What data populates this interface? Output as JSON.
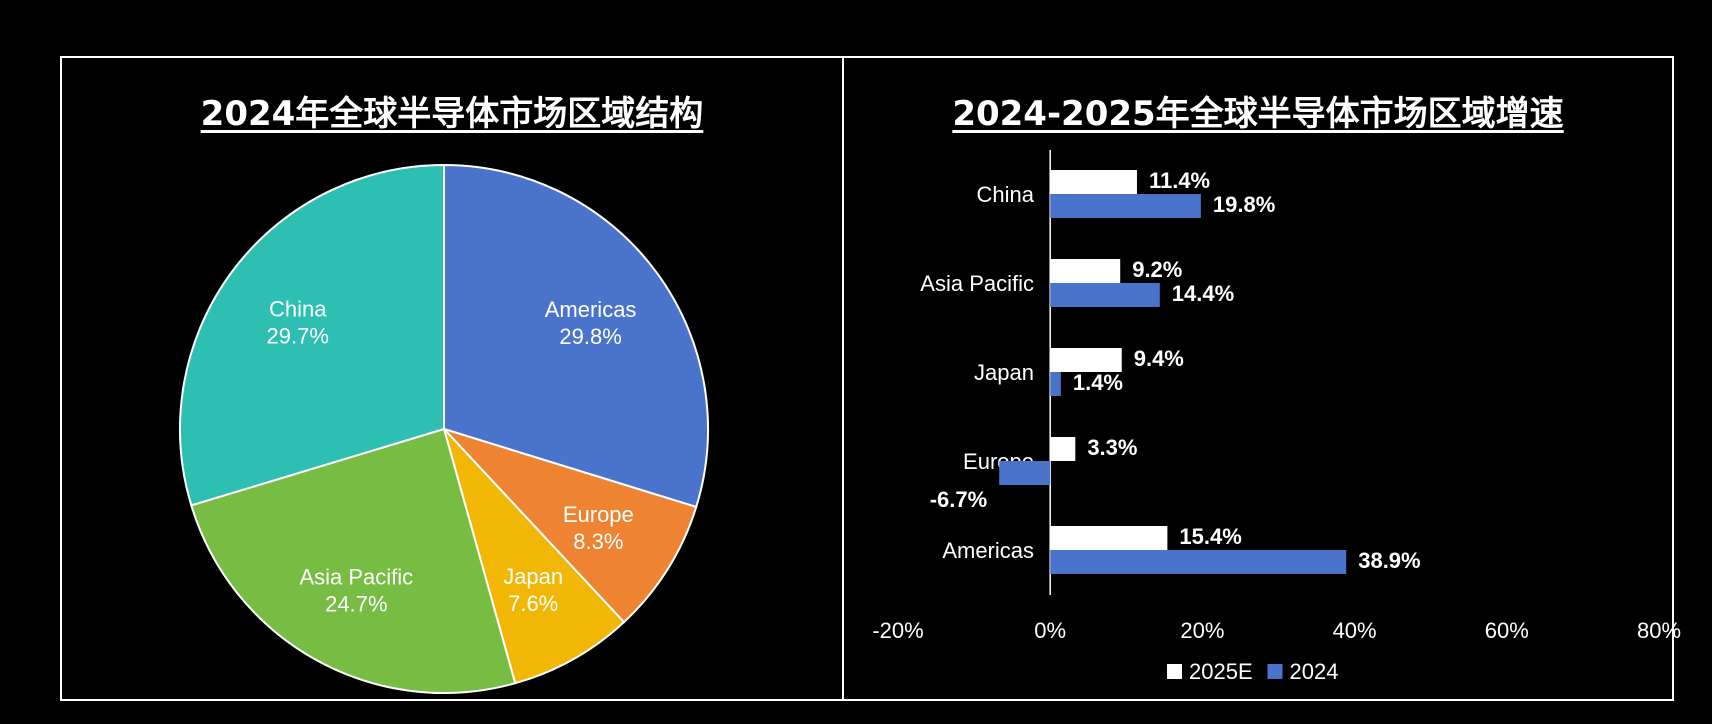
{
  "chart_data": [
    {
      "type": "pie",
      "title": "2024年全球半导体市场区域结构",
      "slices": [
        {
          "label": "Americas",
          "value": 29.8,
          "value_label": "29.8%",
          "color": "#4A74CC"
        },
        {
          "label": "Europe",
          "value": 8.3,
          "value_label": "8.3%",
          "color": "#EE8432"
        },
        {
          "label": "Japan",
          "value": 7.6,
          "value_label": "7.6%",
          "color": "#F2B705"
        },
        {
          "label": "Asia Pacific",
          "value": 24.7,
          "value_label": "24.7%",
          "color": "#77BC43"
        },
        {
          "label": "China",
          "value": 29.7,
          "value_label": "29.7%",
          "color": "#2EBFB3"
        }
      ],
      "start_angle_deg": 0,
      "direction": "clockwise"
    },
    {
      "type": "bar",
      "orientation": "horizontal",
      "title": "2024-2025年全球半导体市场区域增速",
      "categories": [
        "China",
        "Asia Pacific",
        "Japan",
        "Europe",
        "Americas"
      ],
      "series": [
        {
          "name": "2025E",
          "color": "#FFFFFF",
          "values": [
            11.4,
            9.2,
            9.4,
            3.3,
            15.4
          ],
          "labels": [
            "11.4%",
            "9.2%",
            "9.4%",
            "3.3%",
            "15.4%"
          ]
        },
        {
          "name": "2024",
          "color": "#4A74CC",
          "values": [
            19.8,
            14.4,
            1.4,
            -6.7,
            38.9
          ],
          "labels": [
            "19.8%",
            "14.4%",
            "1.4%",
            "-6.7%",
            "38.9%"
          ]
        }
      ],
      "xlim": [
        -20,
        80
      ],
      "x_ticks": [
        -20,
        0,
        20,
        40,
        60,
        80
      ],
      "x_tick_labels": [
        "-20%",
        "0%",
        "20%",
        "40%",
        "60%",
        "80%"
      ],
      "legend": {
        "position": "bottom",
        "entries": [
          "2025E",
          "2024"
        ]
      },
      "grid": false
    }
  ]
}
